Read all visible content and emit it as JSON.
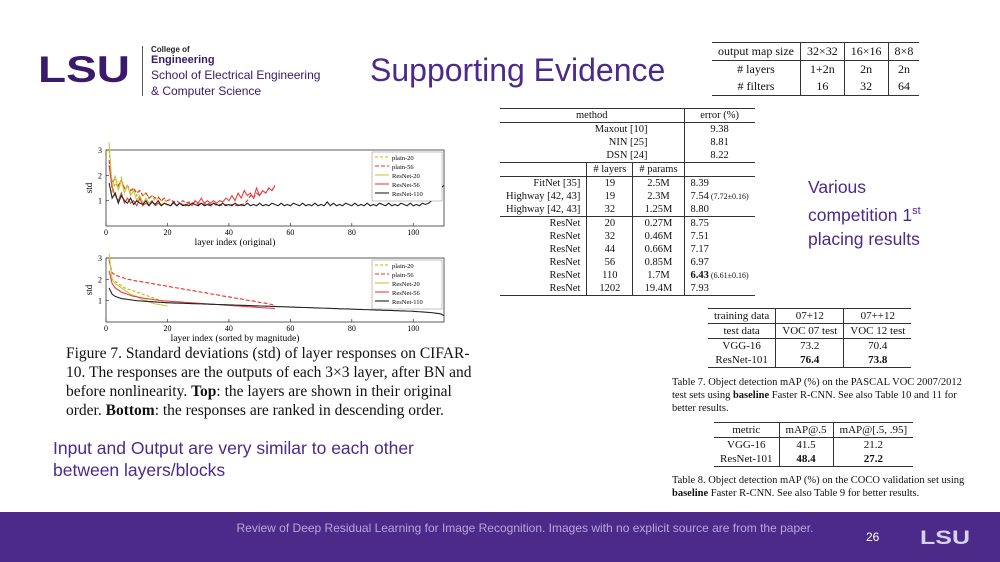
{
  "header": {
    "logo_text": "LSU",
    "college_of": "College of",
    "engineering": "Engineering",
    "school_line1": "School of Electrical Engineering",
    "school_line2": "& Computer Science",
    "title": "Supporting Evidence"
  },
  "brand_colors": {
    "purple": "#4b2a8a",
    "logo_purple": "#3a1a6b"
  },
  "map_table": {
    "rows": [
      [
        "output map size",
        "32×32",
        "16×16",
        "8×8"
      ],
      [
        "# layers",
        "1+2n",
        "2n",
        "2n"
      ],
      [
        "# filters",
        "16",
        "32",
        "64"
      ]
    ]
  },
  "error_table": {
    "head": {
      "method": "method",
      "error": "error (%)"
    },
    "group1": [
      {
        "method": "Maxout [10]",
        "error": "9.38"
      },
      {
        "method": "NIN [25]",
        "error": "8.81"
      },
      {
        "method": "DSN [24]",
        "error": "8.22"
      }
    ],
    "subhead": {
      "layers": "# layers",
      "params": "# params"
    },
    "group2": [
      {
        "method": "FitNet [35]",
        "layers": "19",
        "params": "2.5M",
        "error": "8.39",
        "extra": ""
      },
      {
        "method": "Highway [42, 43]",
        "layers": "19",
        "params": "2.3M",
        "error": "7.54",
        "extra": "(7.72±0.16)"
      },
      {
        "method": "Highway [42, 43]",
        "layers": "32",
        "params": "1.25M",
        "error": "8.80",
        "extra": ""
      }
    ],
    "group3": [
      {
        "method": "ResNet",
        "layers": "20",
        "params": "0.27M",
        "error": "8.75",
        "extra": ""
      },
      {
        "method": "ResNet",
        "layers": "32",
        "params": "0.46M",
        "error": "7.51",
        "extra": ""
      },
      {
        "method": "ResNet",
        "layers": "44",
        "params": "0.66M",
        "error": "7.17",
        "extra": ""
      },
      {
        "method": "ResNet",
        "layers": "56",
        "params": "0.85M",
        "error": "6.97",
        "extra": ""
      },
      {
        "method": "ResNet",
        "layers": "110",
        "params": "1.7M",
        "error": "6.43",
        "extra": "(6.61±0.16)"
      },
      {
        "method": "ResNet",
        "layers": "1202",
        "params": "19.4M",
        "error": "7.93",
        "extra": ""
      }
    ]
  },
  "various_text": {
    "line1": "Various",
    "line2": "competition 1",
    "sup": "st",
    "line3": "placing results"
  },
  "voc_table": {
    "rows": [
      [
        "training data",
        "07+12",
        "07++12"
      ],
      [
        "test data",
        "VOC 07 test",
        "VOC 12 test"
      ],
      [
        "VGG-16",
        "73.2",
        "70.4"
      ],
      [
        "ResNet-101",
        "76.4",
        "73.8"
      ]
    ],
    "caption_a": "Table 7. Object detection mAP (%) on the PASCAL VOC 2007/2012 test sets using ",
    "caption_b": "baseline",
    "caption_c": " Faster R-CNN. See also Table 10 and 11 for better results."
  },
  "coco_table": {
    "rows": [
      [
        "metric",
        "mAP@.5",
        "mAP@[.5, .95]"
      ],
      [
        "VGG-16",
        "41.5",
        "21.2"
      ],
      [
        "ResNet-101",
        "48.4",
        "27.2"
      ]
    ],
    "caption_a": "Table 8. Object detection mAP (%) on the COCO validation set using ",
    "caption_b": "baseline",
    "caption_c": " Faster R-CNN. See also Table 9 for better results."
  },
  "figure_caption": {
    "part1": "Figure 7. Standard deviations (std) of layer responses on CIFAR-10. The responses are the outputs of each 3×3 layer, after BN and before nonlinearity. ",
    "top_label": "Top",
    "part2": ": the layers are shown in their original order. ",
    "bottom_label": "Bottom",
    "part3": ": the responses are ranked in descending order."
  },
  "input_output_text": "Input and Output are very similar to each other between layers/blocks",
  "footer": {
    "text": "Review of Deep Residual Learning for Image Recognition. Images with no explicit source are from the paper.",
    "page_number": "26",
    "logo_text": "LSU"
  },
  "chart_data": [
    {
      "type": "line",
      "xlabel": "layer index (original)",
      "ylabel": "std",
      "xlim": [
        0,
        110
      ],
      "ylim": [
        0,
        3
      ],
      "x_ticks": [
        "0",
        "20",
        "40",
        "60",
        "80",
        "100"
      ],
      "y_ticks": [
        "1",
        "2",
        "3"
      ],
      "legend_position": "top-right",
      "series": [
        {
          "name": "plain-20",
          "color": "#c8b400",
          "dash": "3,2",
          "values": [
            3.0,
            1.3,
            1.7,
            1.5,
            1.9,
            1.4,
            1.6,
            1.3,
            1.5,
            1.2,
            1.4,
            1.2,
            1.3,
            1.1,
            1.2,
            1.0,
            1.1,
            1.0,
            1.05,
            0.9
          ]
        },
        {
          "name": "plain-56",
          "color": "#e8302c",
          "dash": "4,2",
          "values": [
            2.6,
            1.7,
            1.9,
            1.6,
            1.8,
            1.5,
            1.6,
            1.4,
            1.5,
            1.3,
            1.4,
            1.2,
            1.3,
            1.1,
            1.2,
            1.1,
            1.15,
            1.0,
            1.1,
            1.0,
            1.05,
            0.95,
            1.0,
            0.9,
            1.0,
            0.9,
            0.95,
            0.9,
            0.95,
            0.85,
            0.9,
            0.85,
            0.9,
            0.85,
            0.9,
            0.8,
            0.85,
            0.8,
            0.85,
            0.8,
            0.85,
            0.8,
            0.85,
            0.8,
            0.9,
            1.0,
            1.2,
            1.1,
            1.3,
            1.2,
            1.4,
            1.3,
            1.5,
            1.4,
            1.6
          ]
        },
        {
          "name": "ResNet-20",
          "color": "#c8c840",
          "dash": "",
          "values": [
            3.3,
            1.5,
            2.0,
            1.4,
            1.8,
            1.3,
            1.6,
            1.2,
            1.4,
            1.0,
            1.2,
            0.9,
            1.1,
            0.9,
            1.0,
            0.8,
            0.9,
            0.85,
            0.9,
            0.8
          ]
        },
        {
          "name": "ResNet-56",
          "color": "#e84040",
          "dash": "",
          "values": [
            2.4,
            1.5,
            1.2,
            1.0,
            1.3,
            0.9,
            1.1,
            0.9,
            1.0,
            0.8,
            1.1,
            0.8,
            0.9,
            0.8,
            1.0,
            0.8,
            0.9,
            0.8,
            0.9,
            0.85,
            0.8,
            0.9,
            0.8,
            0.9,
            0.85,
            0.8,
            0.9,
            0.8,
            1.0,
            0.9,
            1.1,
            0.9,
            1.0,
            0.9,
            1.0,
            0.9,
            1.0,
            0.95,
            1.1,
            1.0,
            1.2,
            1.0,
            1.3,
            1.1,
            1.4,
            1.2,
            1.3,
            1.1,
            1.5,
            1.2,
            1.4,
            1.3,
            1.5,
            1.4,
            1.6
          ]
        },
        {
          "name": "ResNet-110",
          "color": "#222222",
          "dash": "",
          "values": [
            1.7,
            1.1,
            1.3,
            0.9,
            1.2,
            1.0,
            0.9,
            1.1,
            0.85,
            1.0,
            0.9,
            0.85,
            1.0,
            0.8,
            0.95,
            0.85,
            1.0,
            0.8,
            0.9,
            0.85,
            0.8,
            0.95,
            0.8,
            0.9,
            0.8,
            0.85,
            0.8,
            0.9,
            0.85,
            0.8,
            0.9,
            0.8,
            0.85,
            0.8,
            0.9,
            0.85,
            0.8,
            0.9,
            0.8,
            0.85,
            0.8,
            0.9,
            0.8,
            0.85,
            0.8,
            0.9,
            0.8,
            0.85,
            0.8,
            0.9,
            0.8,
            0.85,
            0.8,
            0.9,
            0.85,
            0.8,
            0.9,
            0.8,
            0.85,
            0.8,
            0.9,
            0.85,
            0.8,
            0.9,
            0.8,
            0.85,
            0.8,
            0.9,
            0.8,
            0.85,
            0.8,
            0.95,
            0.8,
            0.9,
            0.8,
            0.85,
            0.8,
            0.9,
            0.85,
            0.8,
            0.9,
            0.8,
            0.85,
            0.8,
            0.9,
            0.8,
            0.85,
            0.8,
            0.9,
            0.85,
            0.8,
            0.9,
            0.8,
            0.85,
            0.8,
            0.9,
            0.85,
            0.8,
            0.9,
            0.8,
            0.85,
            0.8,
            0.9,
            0.85,
            0.9,
            1.0,
            1.2,
            1.4,
            1.5,
            1.6
          ]
        }
      ]
    },
    {
      "type": "line",
      "xlabel": "layer index (sorted by magnitude)",
      "ylabel": "std",
      "xlim": [
        0,
        110
      ],
      "ylim": [
        0,
        3
      ],
      "x_ticks": [
        "0",
        "20",
        "40",
        "60",
        "80",
        "100"
      ],
      "y_ticks": [
        "1",
        "2",
        "3"
      ],
      "legend_position": "top-right",
      "series": [
        {
          "name": "plain-20",
          "color": "#c8b400",
          "dash": "3,2",
          "values": [
            3.0,
            2.0,
            1.9,
            1.8,
            1.7,
            1.6,
            1.55,
            1.5,
            1.45,
            1.4,
            1.35,
            1.3,
            1.25,
            1.2,
            1.15,
            1.1,
            1.05,
            1.0,
            0.95,
            0.9
          ]
        },
        {
          "name": "plain-56",
          "color": "#e8302c",
          "dash": "4,2",
          "values": [
            2.9,
            2.3,
            2.2,
            2.15,
            2.1,
            2.05,
            2.0,
            1.98,
            1.95,
            1.92,
            1.9,
            1.88,
            1.85,
            1.83,
            1.8,
            1.78,
            1.75,
            1.72,
            1.7,
            1.68,
            1.65,
            1.62,
            1.6,
            1.58,
            1.55,
            1.52,
            1.5,
            1.48,
            1.45,
            1.42,
            1.4,
            1.38,
            1.35,
            1.32,
            1.3,
            1.28,
            1.25,
            1.22,
            1.2,
            1.18,
            1.15,
            1.12,
            1.1,
            1.08,
            1.05,
            1.02,
            1.0,
            0.98,
            0.95,
            0.92,
            0.9,
            0.88,
            0.85,
            0.82,
            0.8
          ]
        },
        {
          "name": "ResNet-20",
          "color": "#c8c840",
          "dash": "",
          "values": [
            3.2,
            2.0,
            1.8,
            1.7,
            1.6,
            1.5,
            1.4,
            1.3,
            1.25,
            1.2,
            1.1,
            1.05,
            1.0,
            0.95,
            0.9,
            0.85,
            0.82,
            0.8,
            0.78,
            0.75
          ]
        },
        {
          "name": "ResNet-56",
          "color": "#e84040",
          "dash": "",
          "values": [
            2.4,
            1.8,
            1.6,
            1.5,
            1.4,
            1.35,
            1.3,
            1.25,
            1.2,
            1.18,
            1.15,
            1.12,
            1.1,
            1.08,
            1.06,
            1.04,
            1.02,
            1.0,
            0.99,
            0.98,
            0.97,
            0.96,
            0.95,
            0.94,
            0.93,
            0.92,
            0.91,
            0.9,
            0.89,
            0.88,
            0.87,
            0.86,
            0.85,
            0.84,
            0.83,
            0.82,
            0.81,
            0.8,
            0.79,
            0.78,
            0.77,
            0.76,
            0.75,
            0.74,
            0.73,
            0.72,
            0.71,
            0.7,
            0.69,
            0.68,
            0.67,
            0.66,
            0.65,
            0.64,
            0.63
          ]
        },
        {
          "name": "ResNet-110",
          "color": "#222222",
          "dash": "",
          "values": [
            1.6,
            1.3,
            1.2,
            1.15,
            1.1,
            1.08,
            1.06,
            1.04,
            1.02,
            1.0,
            0.99,
            0.98,
            0.97,
            0.96,
            0.95,
            0.94,
            0.93,
            0.92,
            0.91,
            0.9,
            0.9,
            0.89,
            0.89,
            0.88,
            0.88,
            0.87,
            0.87,
            0.86,
            0.86,
            0.85,
            0.85,
            0.84,
            0.84,
            0.83,
            0.83,
            0.82,
            0.82,
            0.81,
            0.81,
            0.8,
            0.8,
            0.79,
            0.79,
            0.78,
            0.78,
            0.77,
            0.77,
            0.76,
            0.76,
            0.75,
            0.75,
            0.74,
            0.74,
            0.73,
            0.73,
            0.72,
            0.72,
            0.71,
            0.71,
            0.7,
            0.7,
            0.69,
            0.69,
            0.68,
            0.68,
            0.67,
            0.67,
            0.66,
            0.66,
            0.65,
            0.65,
            0.64,
            0.64,
            0.63,
            0.63,
            0.62,
            0.62,
            0.61,
            0.61,
            0.6,
            0.6,
            0.59,
            0.59,
            0.58,
            0.58,
            0.57,
            0.57,
            0.56,
            0.56,
            0.55,
            0.55,
            0.54,
            0.54,
            0.53,
            0.53,
            0.52,
            0.52,
            0.51,
            0.51,
            0.5,
            0.49,
            0.48,
            0.47,
            0.46,
            0.45,
            0.44,
            0.42,
            0.4,
            0.38,
            0.3
          ]
        }
      ]
    }
  ]
}
